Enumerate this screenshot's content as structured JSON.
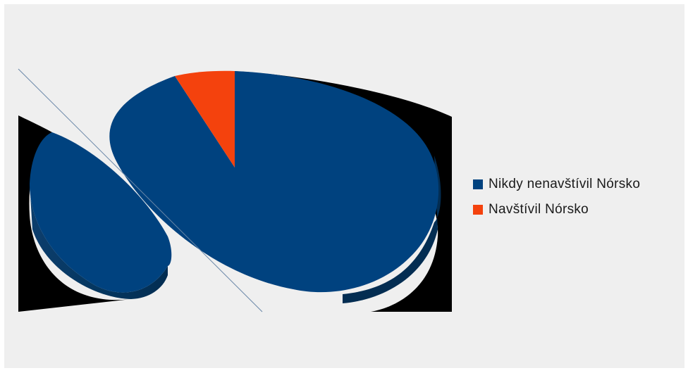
{
  "chart_data": {
    "type": "pie",
    "style": "3d-exploded",
    "slices": [
      {
        "label": "Nikdy nenavštívil Nórsko",
        "value": 94,
        "color": "#00427f"
      },
      {
        "label": "Navštívil Nórsko",
        "value": 6,
        "color": "#f4420d"
      }
    ],
    "legend_position": "right"
  }
}
